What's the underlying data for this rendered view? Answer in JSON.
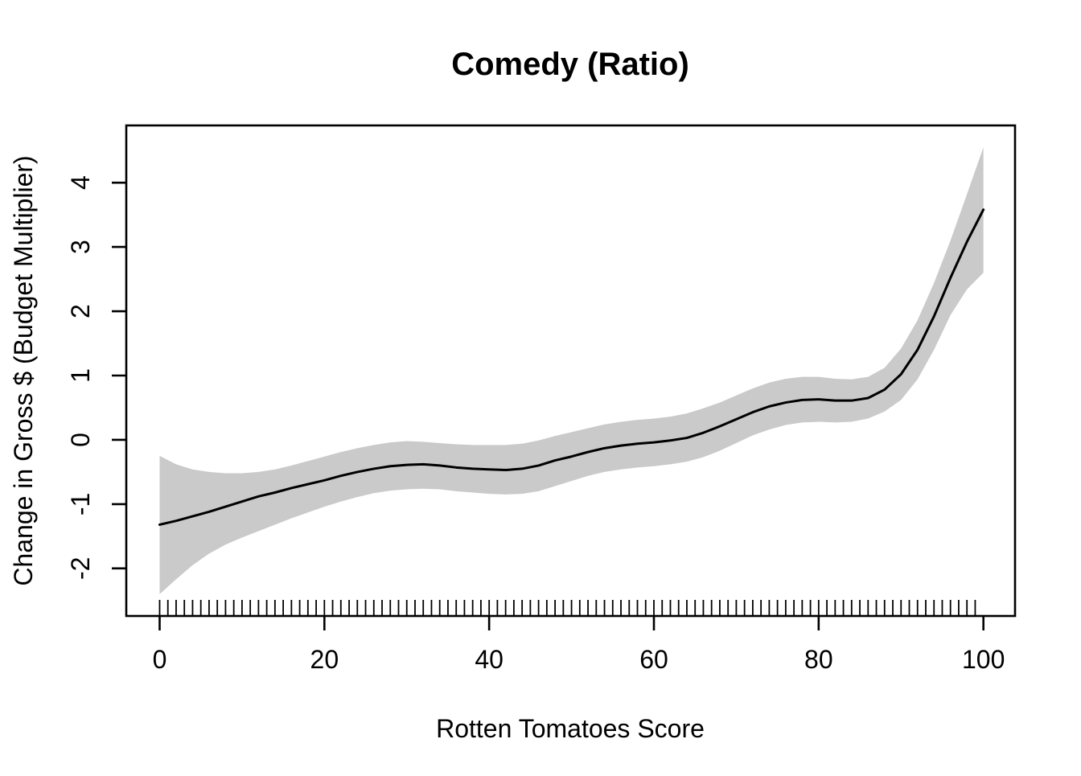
{
  "chart_data": {
    "type": "line",
    "title": "Comedy (Ratio)",
    "xlabel": "Rotten Tomatoes Score",
    "ylabel": "Change in Gross $ (Budget Multiplier)",
    "x_ticks": [
      0,
      20,
      40,
      60,
      80,
      100
    ],
    "y_ticks": [
      -2,
      -1,
      0,
      1,
      2,
      3,
      4
    ],
    "xlim": [
      -4.05,
      103.84
    ],
    "ylim": [
      -2.74,
      4.89
    ],
    "grid": false,
    "legend": "none",
    "x": [
      0,
      2,
      4,
      6,
      8,
      10,
      12,
      14,
      16,
      18,
      20,
      22,
      24,
      26,
      28,
      30,
      32,
      34,
      36,
      38,
      40,
      42,
      44,
      46,
      48,
      50,
      52,
      54,
      56,
      58,
      60,
      62,
      64,
      66,
      68,
      70,
      72,
      74,
      76,
      78,
      80,
      82,
      84,
      86,
      88,
      90,
      92,
      94,
      96,
      98,
      100
    ],
    "series": [
      {
        "name": "smooth-fit",
        "values": [
          -1.32,
          -1.26,
          -1.19,
          -1.12,
          -1.04,
          -0.96,
          -0.88,
          -0.82,
          -0.75,
          -0.69,
          -0.63,
          -0.56,
          -0.5,
          -0.45,
          -0.41,
          -0.39,
          -0.38,
          -0.4,
          -0.43,
          -0.45,
          -0.46,
          -0.47,
          -0.45,
          -0.4,
          -0.32,
          -0.26,
          -0.19,
          -0.13,
          -0.09,
          -0.06,
          -0.04,
          -0.01,
          0.03,
          0.11,
          0.21,
          0.32,
          0.43,
          0.52,
          0.58,
          0.62,
          0.63,
          0.61,
          0.61,
          0.65,
          0.78,
          1.02,
          1.4,
          1.92,
          2.52,
          3.08,
          3.58
        ]
      },
      {
        "name": "confidence-upper",
        "values": [
          -0.25,
          -0.38,
          -0.46,
          -0.5,
          -0.52,
          -0.52,
          -0.5,
          -0.46,
          -0.4,
          -0.33,
          -0.26,
          -0.19,
          -0.13,
          -0.08,
          -0.04,
          -0.02,
          -0.03,
          -0.05,
          -0.07,
          -0.08,
          -0.08,
          -0.08,
          -0.06,
          -0.01,
          0.06,
          0.12,
          0.18,
          0.24,
          0.28,
          0.31,
          0.33,
          0.36,
          0.41,
          0.49,
          0.58,
          0.69,
          0.8,
          0.89,
          0.95,
          0.98,
          0.98,
          0.95,
          0.94,
          0.98,
          1.12,
          1.42,
          1.86,
          2.44,
          3.1,
          3.82,
          4.55
        ]
      },
      {
        "name": "confidence-lower",
        "values": [
          -2.4,
          -2.17,
          -1.95,
          -1.77,
          -1.63,
          -1.52,
          -1.42,
          -1.32,
          -1.22,
          -1.13,
          -1.04,
          -0.96,
          -0.89,
          -0.83,
          -0.79,
          -0.77,
          -0.76,
          -0.77,
          -0.8,
          -0.82,
          -0.84,
          -0.85,
          -0.84,
          -0.8,
          -0.72,
          -0.64,
          -0.56,
          -0.5,
          -0.46,
          -0.43,
          -0.41,
          -0.38,
          -0.34,
          -0.27,
          -0.17,
          -0.05,
          0.07,
          0.16,
          0.23,
          0.27,
          0.28,
          0.27,
          0.28,
          0.33,
          0.44,
          0.62,
          0.94,
          1.4,
          1.94,
          2.34,
          2.6
        ]
      }
    ],
    "rug_x": [
      0,
      1,
      2,
      3,
      4,
      5,
      6,
      7,
      8,
      9,
      10,
      11,
      12,
      13,
      14,
      15,
      16,
      17,
      18,
      19,
      20,
      21,
      22,
      23,
      24,
      25,
      26,
      27,
      28,
      29,
      30,
      31,
      32,
      33,
      34,
      35,
      36,
      37,
      38,
      39,
      40,
      41,
      42,
      43,
      44,
      45,
      46,
      47,
      48,
      49,
      50,
      51,
      52,
      53,
      54,
      55,
      56,
      57,
      58,
      59,
      60,
      61,
      62,
      63,
      64,
      65,
      66,
      67,
      68,
      69,
      70,
      71,
      72,
      73,
      74,
      75,
      76,
      77,
      78,
      79,
      80,
      81,
      82,
      83,
      84,
      85,
      86,
      87,
      88,
      89,
      90,
      91,
      92,
      93,
      94,
      95,
      96,
      97,
      98,
      99
    ],
    "colors": {
      "band": "#cacaca",
      "line": "#000000",
      "axis": "#000000",
      "background": "#ffffff"
    }
  }
}
